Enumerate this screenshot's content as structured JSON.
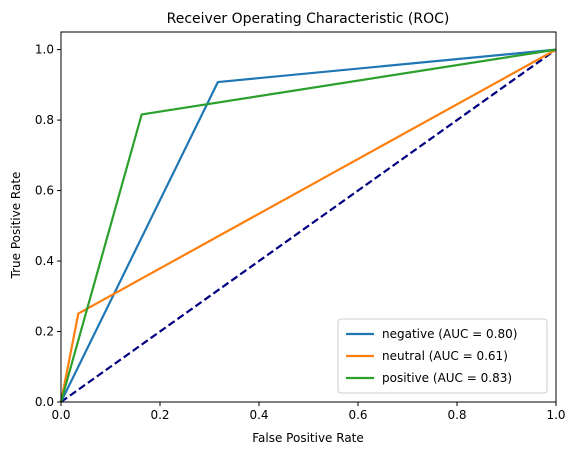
{
  "chart_data": {
    "type": "line",
    "title": "Receiver Operating Characteristic (ROC)",
    "xlabel": "False Positive Rate",
    "ylabel": "True Positive Rate",
    "xlim": [
      0.0,
      1.0
    ],
    "ylim": [
      0.0,
      1.05
    ],
    "x_ticks": [
      0.0,
      0.2,
      0.4,
      0.6,
      0.8,
      1.0
    ],
    "y_ticks": [
      0.0,
      0.2,
      0.4,
      0.6,
      0.8,
      1.0
    ],
    "x_tick_labels": [
      "0.0",
      "0.2",
      "0.4",
      "0.6",
      "0.8",
      "1.0"
    ],
    "y_tick_labels": [
      "0.0",
      "0.2",
      "0.4",
      "0.6",
      "0.8",
      "1.0"
    ],
    "grid": false,
    "legend_position": "bottom-right",
    "series": [
      {
        "name": "negative (AUC = 0.80)",
        "color": "#1f77b4",
        "x": [
          0.0,
          0.317,
          1.0
        ],
        "y": [
          0.0,
          0.908,
          1.0
        ]
      },
      {
        "name": "neutral (AUC = 0.61)",
        "color": "#ff7f0e",
        "x": [
          0.0,
          0.035,
          1.0
        ],
        "y": [
          0.0,
          0.251,
          1.0
        ]
      },
      {
        "name": "positive (AUC = 0.83)",
        "color": "#2ca02c",
        "x": [
          0.0,
          0.163,
          1.0
        ],
        "y": [
          0.0,
          0.816,
          1.0
        ]
      }
    ],
    "reference_line": {
      "color": "#000080",
      "style": "dashed",
      "x": [
        0.0,
        1.0
      ],
      "y": [
        0.0,
        1.0
      ]
    }
  }
}
